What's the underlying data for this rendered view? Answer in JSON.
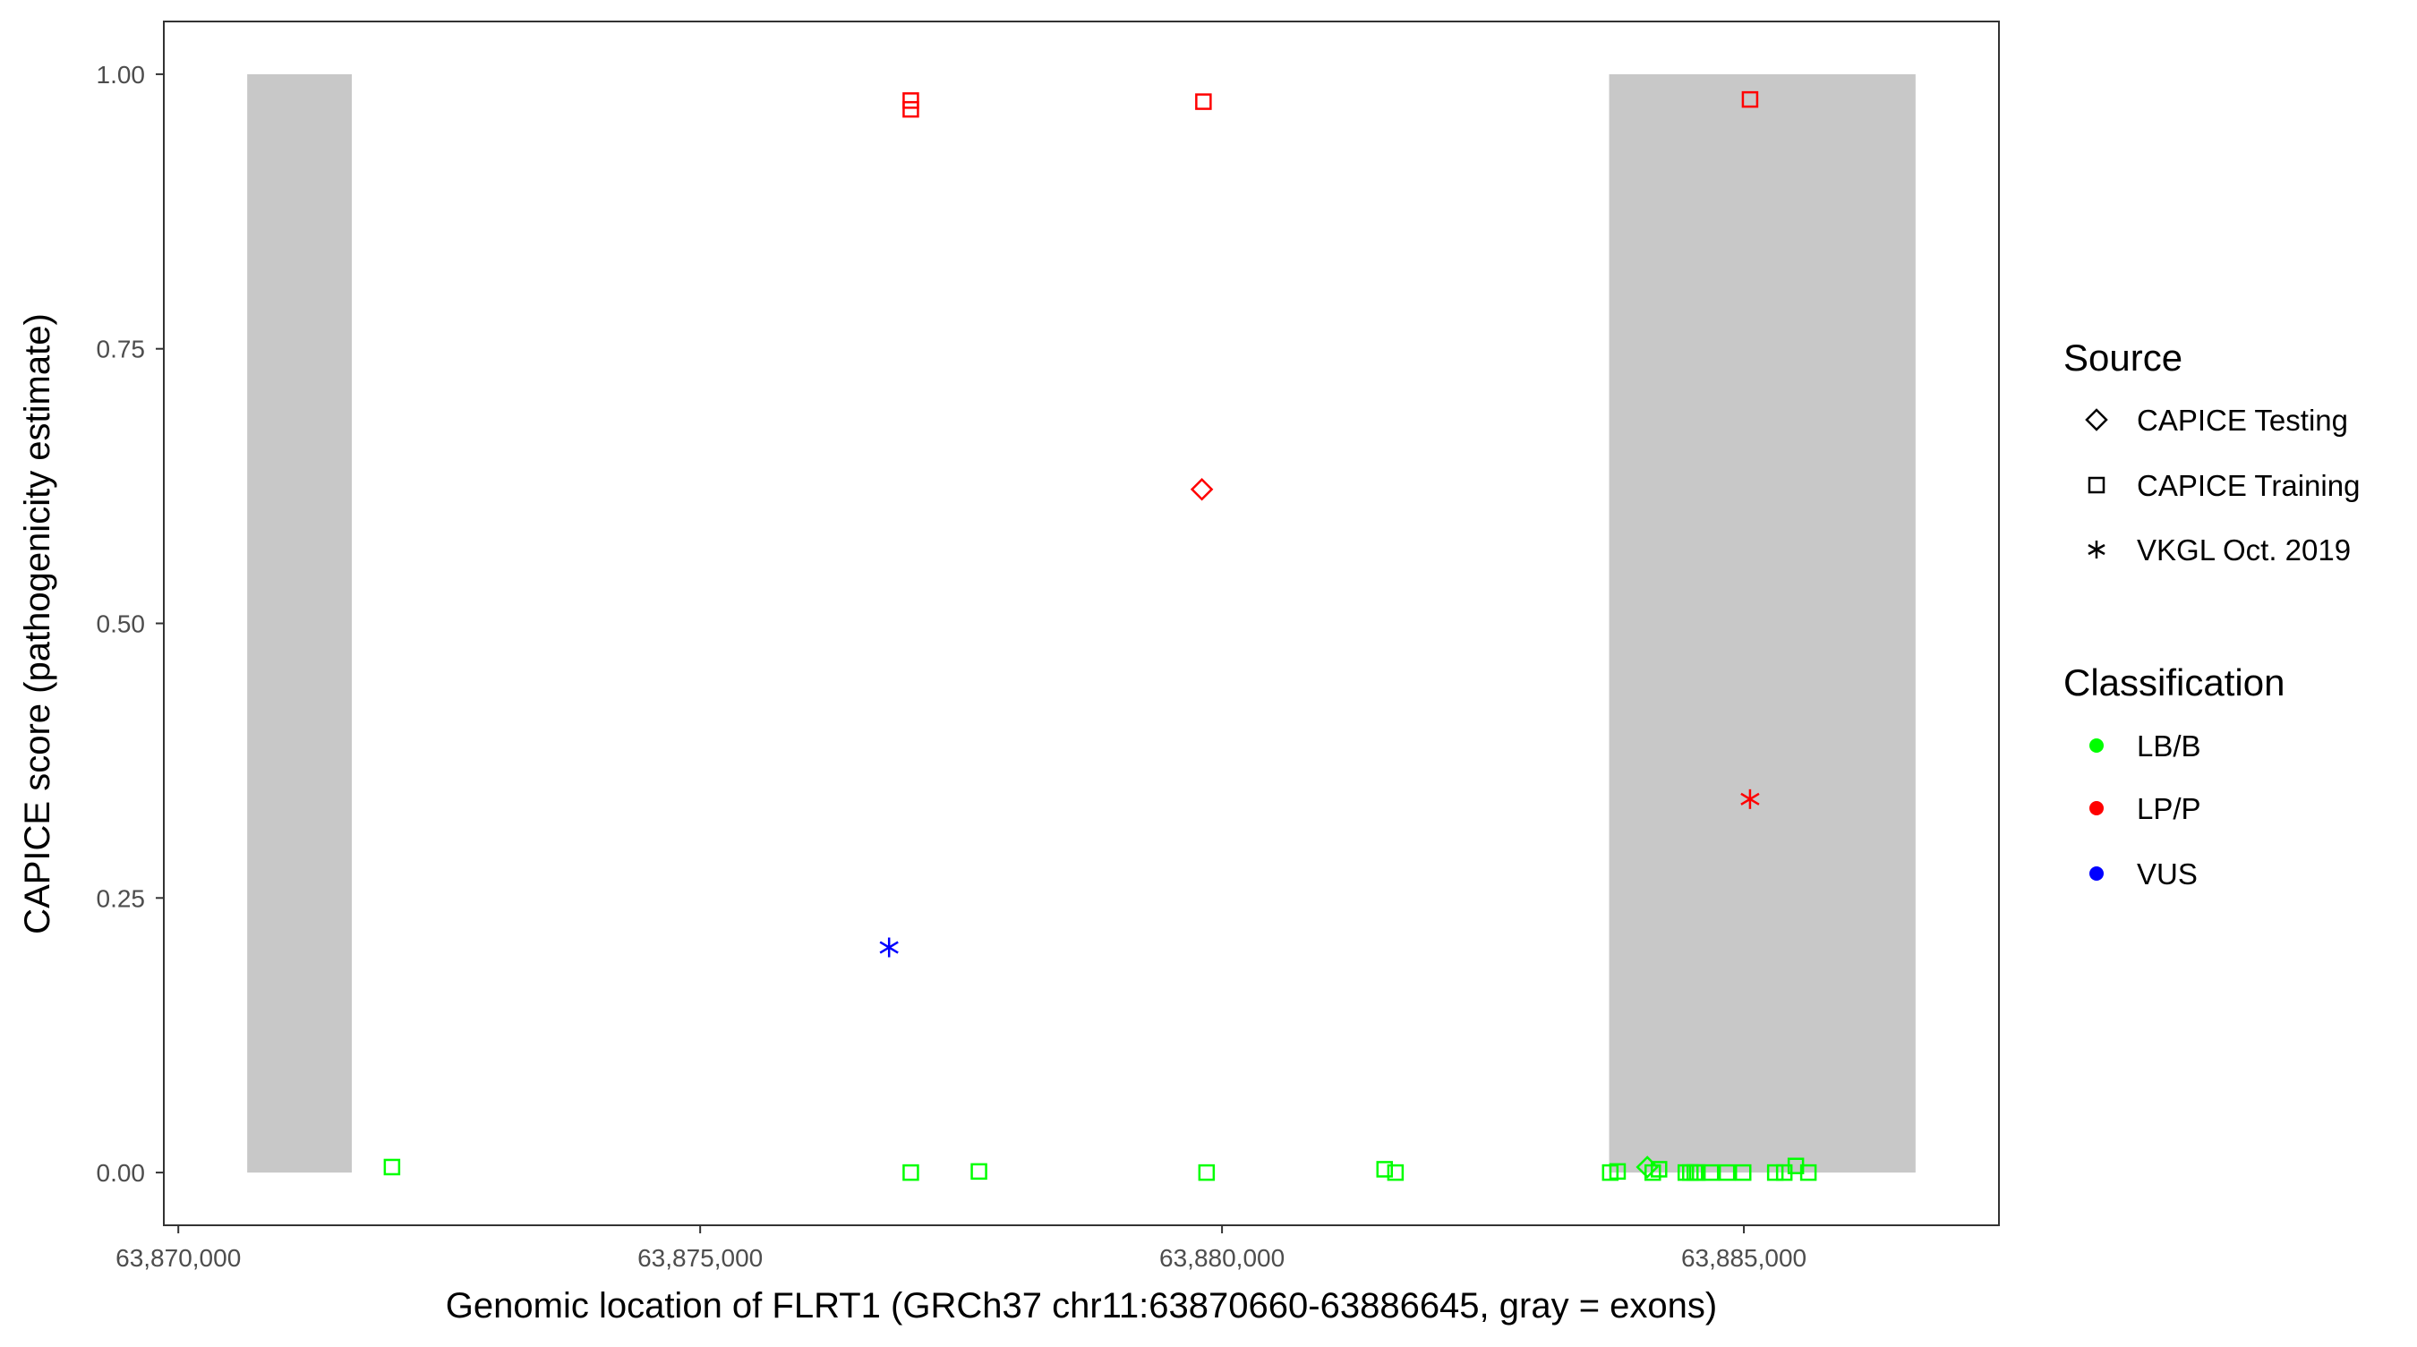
{
  "chart_data": {
    "type": "scatter",
    "title": "",
    "xlabel": "Genomic location of FLRT1 (GRCh37 chr11:63870660-63886645, gray = exons)",
    "ylabel": "CAPICE score (pathogenicity estimate)",
    "xlim": [
      63869861,
      63887444
    ],
    "ylim": [
      -0.048,
      1.048
    ],
    "x_ticks": [
      63870000,
      63875000,
      63880000,
      63885000
    ],
    "x_tick_labels": [
      "63,870,000",
      "63,875,000",
      "63,880,000",
      "63,885,000"
    ],
    "y_ticks": [
      0,
      0.25,
      0.5,
      0.75,
      1.0
    ],
    "y_tick_labels": [
      "0.00",
      "0.25",
      "0.50",
      "0.75",
      "1.00"
    ],
    "grid": false,
    "exons": [
      {
        "start": 63870660,
        "end": 63871662,
        "ymin": 0,
        "ymax": 1,
        "color": "#C8C8C8"
      },
      {
        "start": 63883709,
        "end": 63886645,
        "ymin": 0,
        "ymax": 1,
        "color": "#C8C8C8"
      }
    ],
    "legend_placement": "right",
    "legends": {
      "source": {
        "title": "Source",
        "items": [
          {
            "label": "CAPICE Testing",
            "shape": "diamond"
          },
          {
            "label": "CAPICE Training",
            "shape": "square"
          },
          {
            "label": "VKGL Oct. 2019",
            "shape": "asterisk"
          }
        ]
      },
      "classification": {
        "title": "Classification",
        "items": [
          {
            "label": "LB/B",
            "color": "#00FF00"
          },
          {
            "label": "LP/P",
            "color": "#FF0000"
          },
          {
            "label": "VUS",
            "color": "#0000FF"
          }
        ]
      }
    },
    "points": [
      {
        "x": 63872047,
        "y": 0.005,
        "source": "CAPICE Training",
        "class": "LB/B"
      },
      {
        "x": 63876810,
        "y": 0.205,
        "source": "VKGL Oct. 2019",
        "class": "VUS"
      },
      {
        "x": 63877018,
        "y": 0.976,
        "source": "CAPICE Training",
        "class": "LP/P"
      },
      {
        "x": 63877018,
        "y": 0.968,
        "source": "CAPICE Training",
        "class": "LP/P"
      },
      {
        "x": 63877018,
        "y": 0.0,
        "source": "CAPICE Training",
        "class": "LB/B"
      },
      {
        "x": 63877671,
        "y": 0.001,
        "source": "CAPICE Training",
        "class": "LB/B"
      },
      {
        "x": 63879822,
        "y": 0.975,
        "source": "CAPICE Training",
        "class": "LP/P"
      },
      {
        "x": 63879807,
        "y": 0.622,
        "source": "CAPICE Testing",
        "class": "LP/P"
      },
      {
        "x": 63879852,
        "y": 0.0,
        "source": "CAPICE Training",
        "class": "LB/B"
      },
      {
        "x": 63881558,
        "y": 0.003,
        "source": "CAPICE Training",
        "class": "LB/B"
      },
      {
        "x": 63881662,
        "y": 0.0,
        "source": "CAPICE Training",
        "class": "LB/B"
      },
      {
        "x": 63885059,
        "y": 0.977,
        "source": "CAPICE Training",
        "class": "LP/P"
      },
      {
        "x": 63885059,
        "y": 0.34,
        "source": "VKGL Oct. 2019",
        "class": "LP/P"
      },
      {
        "x": 63883720,
        "y": 0.0,
        "source": "CAPICE Training",
        "class": "LB/B"
      },
      {
        "x": 63883790,
        "y": 0.001,
        "source": "CAPICE Training",
        "class": "LB/B"
      },
      {
        "x": 63884075,
        "y": 0.005,
        "source": "CAPICE Testing",
        "class": "LB/B"
      },
      {
        "x": 63884127,
        "y": 0.0,
        "source": "CAPICE Training",
        "class": "LB/B"
      },
      {
        "x": 63884187,
        "y": 0.003,
        "source": "CAPICE Training",
        "class": "LB/B"
      },
      {
        "x": 63884444,
        "y": 0.0,
        "source": "CAPICE Training",
        "class": "LB/B"
      },
      {
        "x": 63884487,
        "y": 0.0,
        "source": "CAPICE Training",
        "class": "LB/B"
      },
      {
        "x": 63884530,
        "y": 0.0,
        "source": "CAPICE Training",
        "class": "LB/B"
      },
      {
        "x": 63884555,
        "y": 0.0,
        "source": "CAPICE Training",
        "class": "LB/B"
      },
      {
        "x": 63884684,
        "y": 0.0,
        "source": "CAPICE Training",
        "class": "LB/B"
      },
      {
        "x": 63884838,
        "y": 0.0,
        "source": "CAPICE Training",
        "class": "LB/B"
      },
      {
        "x": 63884993,
        "y": 0.0,
        "source": "CAPICE Training",
        "class": "LB/B"
      },
      {
        "x": 63885301,
        "y": 0.0,
        "source": "CAPICE Training",
        "class": "LB/B"
      },
      {
        "x": 63885387,
        "y": 0.0,
        "source": "CAPICE Training",
        "class": "LB/B"
      },
      {
        "x": 63885498,
        "y": 0.006,
        "source": "CAPICE Training",
        "class": "LB/B"
      },
      {
        "x": 63885618,
        "y": 0.0,
        "source": "CAPICE Training",
        "class": "LB/B"
      }
    ]
  }
}
